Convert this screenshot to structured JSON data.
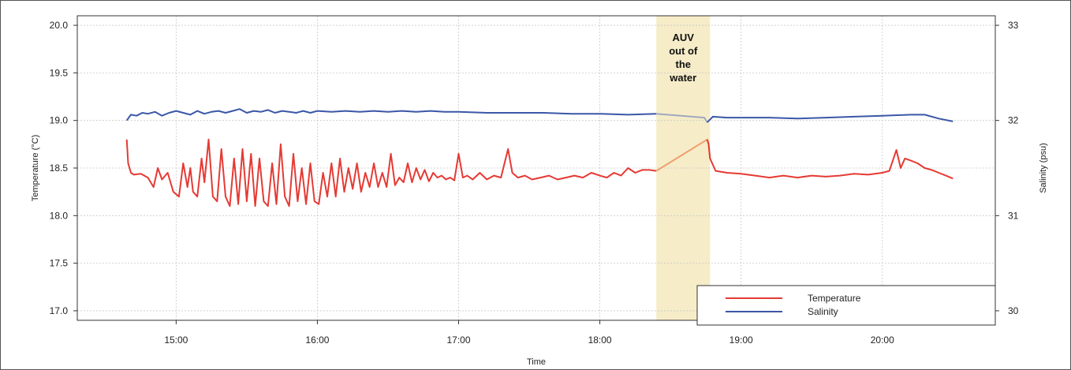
{
  "chart_data": {
    "type": "line",
    "xlabel": "Time",
    "ylabel_left": "Temperature (°C)",
    "ylabel_right": "Salinity (psu)",
    "x_range_hours": [
      14.3,
      20.8
    ],
    "x_ticks": [
      {
        "value": 15,
        "label": "15:00"
      },
      {
        "value": 16,
        "label": "16:00"
      },
      {
        "value": 17,
        "label": "17:00"
      },
      {
        "value": 18,
        "label": "18:00"
      },
      {
        "value": 19,
        "label": "19:00"
      },
      {
        "value": 20,
        "label": "20:00"
      }
    ],
    "ylim_left": [
      16.9,
      20.1
    ],
    "y_ticks_left": [
      {
        "value": 17.0,
        "label": "17.0"
      },
      {
        "value": 17.5,
        "label": "17.5"
      },
      {
        "value": 18.0,
        "label": "18.0"
      },
      {
        "value": 18.5,
        "label": "18.5"
      },
      {
        "value": 19.0,
        "label": "19.0"
      },
      {
        "value": 19.5,
        "label": "19.5"
      },
      {
        "value": 20.0,
        "label": "20.0"
      }
    ],
    "ylim_right": [
      29.9,
      33.1
    ],
    "y_ticks_right": [
      {
        "value": 30,
        "label": "30"
      },
      {
        "value": 31,
        "label": "31"
      },
      {
        "value": 32,
        "label": "32"
      },
      {
        "value": 33,
        "label": "33"
      }
    ],
    "grid": true,
    "legend_position": "bottom-right",
    "annotation": {
      "label": "AUV out of the water",
      "x_start": 18.4,
      "x_end": 18.78,
      "color": "#f6ecc8"
    },
    "series": [
      {
        "name": "Temperature",
        "axis": "left",
        "color": "#e53a34",
        "gap_color": "#f0a070",
        "x": [
          14.65,
          14.66,
          14.68,
          14.7,
          14.75,
          14.8,
          14.84,
          14.87,
          14.9,
          14.94,
          14.98,
          15.02,
          15.05,
          15.08,
          15.1,
          15.12,
          15.15,
          15.18,
          15.2,
          15.23,
          15.26,
          15.29,
          15.32,
          15.35,
          15.38,
          15.41,
          15.44,
          15.47,
          15.5,
          15.53,
          15.56,
          15.59,
          15.62,
          15.65,
          15.68,
          15.71,
          15.74,
          15.77,
          15.8,
          15.83,
          15.86,
          15.89,
          15.92,
          15.95,
          15.98,
          16.01,
          16.04,
          16.07,
          16.1,
          16.13,
          16.16,
          16.19,
          16.22,
          16.25,
          16.28,
          16.31,
          16.34,
          16.37,
          16.4,
          16.43,
          16.46,
          16.49,
          16.52,
          16.55,
          16.58,
          16.61,
          16.64,
          16.67,
          16.7,
          16.73,
          16.76,
          16.79,
          16.82,
          16.85,
          16.88,
          16.91,
          16.94,
          16.97,
          17.0,
          17.03,
          17.06,
          17.1,
          17.15,
          17.2,
          17.25,
          17.3,
          17.35,
          17.38,
          17.42,
          17.47,
          17.52,
          17.58,
          17.64,
          17.7,
          17.76,
          17.82,
          17.88,
          17.94,
          18.0,
          18.05,
          18.1,
          18.15,
          18.2,
          18.25,
          18.3,
          18.35,
          18.4,
          18.76,
          18.77,
          18.78,
          18.82,
          18.9,
          19.0,
          19.1,
          19.2,
          19.3,
          19.4,
          19.5,
          19.6,
          19.7,
          19.8,
          19.9,
          20.0,
          20.05,
          20.1,
          20.13,
          20.16,
          20.2,
          20.25,
          20.3,
          20.35,
          20.4,
          20.45,
          20.5
        ],
        "values": [
          18.8,
          18.55,
          18.45,
          18.43,
          18.44,
          18.4,
          18.3,
          18.5,
          18.38,
          18.45,
          18.25,
          18.2,
          18.55,
          18.3,
          18.5,
          18.25,
          18.2,
          18.6,
          18.35,
          18.8,
          18.2,
          18.15,
          18.7,
          18.2,
          18.1,
          18.6,
          18.12,
          18.7,
          18.15,
          18.65,
          18.1,
          18.6,
          18.15,
          18.1,
          18.55,
          18.12,
          18.75,
          18.2,
          18.1,
          18.65,
          18.15,
          18.5,
          18.12,
          18.55,
          18.15,
          18.12,
          18.45,
          18.2,
          18.55,
          18.2,
          18.6,
          18.25,
          18.5,
          18.28,
          18.55,
          18.25,
          18.45,
          18.3,
          18.55,
          18.3,
          18.45,
          18.3,
          18.65,
          18.32,
          18.4,
          18.35,
          18.55,
          18.35,
          18.5,
          18.38,
          18.48,
          18.36,
          18.45,
          18.4,
          18.42,
          18.38,
          18.4,
          18.37,
          18.65,
          18.4,
          18.42,
          18.38,
          18.45,
          18.38,
          18.42,
          18.4,
          18.7,
          18.45,
          18.4,
          18.42,
          18.38,
          18.4,
          18.42,
          18.38,
          18.4,
          18.42,
          18.4,
          18.45,
          18.42,
          18.4,
          18.45,
          18.42,
          18.5,
          18.45,
          18.48,
          18.48,
          18.47,
          18.8,
          18.75,
          18.6,
          18.47,
          18.45,
          18.44,
          18.42,
          18.4,
          18.42,
          18.4,
          18.42,
          18.41,
          18.42,
          18.44,
          18.43,
          18.45,
          18.47,
          18.69,
          18.5,
          18.6,
          18.58,
          18.55,
          18.5,
          18.48,
          18.45,
          18.42,
          18.39
        ]
      },
      {
        "name": "Salinity",
        "axis": "right",
        "color": "#3b57a7",
        "gap_color": "#a0a8c0",
        "x": [
          14.65,
          14.68,
          14.72,
          14.76,
          14.8,
          14.85,
          14.9,
          14.95,
          15.0,
          15.05,
          15.1,
          15.15,
          15.2,
          15.25,
          15.3,
          15.35,
          15.4,
          15.45,
          15.5,
          15.55,
          15.6,
          15.65,
          15.7,
          15.75,
          15.8,
          15.85,
          15.9,
          15.95,
          16.0,
          16.1,
          16.2,
          16.3,
          16.4,
          16.5,
          16.6,
          16.7,
          16.8,
          16.9,
          17.0,
          17.2,
          17.4,
          17.6,
          17.8,
          18.0,
          18.2,
          18.4,
          18.74,
          18.76,
          18.8,
          18.9,
          19.0,
          19.2,
          19.4,
          19.6,
          19.8,
          20.0,
          20.2,
          20.3,
          20.4,
          20.5
        ],
        "values": [
          32.0,
          32.06,
          32.05,
          32.08,
          32.07,
          32.09,
          32.05,
          32.08,
          32.1,
          32.08,
          32.06,
          32.1,
          32.07,
          32.09,
          32.1,
          32.08,
          32.1,
          32.12,
          32.08,
          32.1,
          32.09,
          32.11,
          32.08,
          32.1,
          32.09,
          32.08,
          32.1,
          32.08,
          32.1,
          32.09,
          32.1,
          32.09,
          32.1,
          32.09,
          32.1,
          32.09,
          32.1,
          32.09,
          32.09,
          32.08,
          32.08,
          32.08,
          32.07,
          32.07,
          32.06,
          32.07,
          32.03,
          31.98,
          32.04,
          32.03,
          32.03,
          32.03,
          32.02,
          32.03,
          32.04,
          32.05,
          32.06,
          32.06,
          32.02,
          31.99
        ]
      }
    ]
  }
}
